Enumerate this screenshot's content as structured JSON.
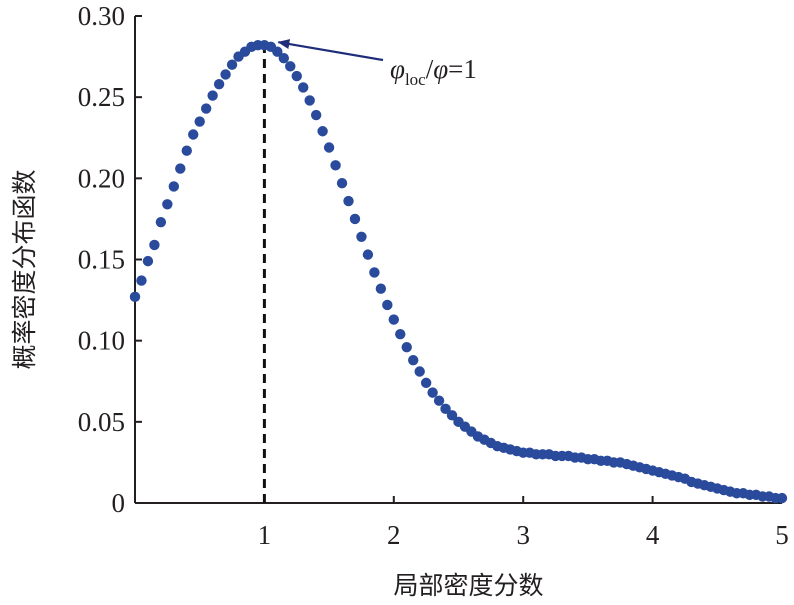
{
  "chart_data": {
    "type": "scatter",
    "title": "",
    "xlabel": "局部密度分数",
    "ylabel": "概率密度分布函数",
    "xlim": [
      0,
      5
    ],
    "ylim": [
      0,
      0.3
    ],
    "x_ticks": [
      {
        "value": 1,
        "label": "1"
      },
      {
        "value": 2,
        "label": "2"
      },
      {
        "value": 3,
        "label": "3"
      },
      {
        "value": 4,
        "label": "4"
      },
      {
        "value": 5,
        "label": "5"
      }
    ],
    "y_ticks": [
      {
        "value": 0,
        "label": "0"
      },
      {
        "value": 0.05,
        "label": "0.05"
      },
      {
        "value": 0.1,
        "label": "0.10"
      },
      {
        "value": 0.15,
        "label": "0.15"
      },
      {
        "value": 0.2,
        "label": "0.20"
      },
      {
        "value": 0.25,
        "label": "0.25"
      },
      {
        "value": 0.3,
        "label": "0.30"
      }
    ],
    "grid": false,
    "marker_color": "#2a4a9c",
    "series": [
      {
        "x": [
          0.0,
          0.05,
          0.1,
          0.15,
          0.2,
          0.25,
          0.3,
          0.35,
          0.4,
          0.45,
          0.5,
          0.55,
          0.6,
          0.65,
          0.7,
          0.75,
          0.8,
          0.85,
          0.9,
          0.95,
          1.0,
          1.05,
          1.1,
          1.15,
          1.2,
          1.25,
          1.3,
          1.35,
          1.4,
          1.45,
          1.5,
          1.55,
          1.6,
          1.65,
          1.7,
          1.75,
          1.8,
          1.85,
          1.9,
          1.95,
          2.0,
          2.05,
          2.1,
          2.15,
          2.2,
          2.25,
          2.3,
          2.35,
          2.4,
          2.45,
          2.5,
          2.55,
          2.6,
          2.65,
          2.7,
          2.75,
          2.8,
          2.85,
          2.9,
          2.95,
          3.0,
          3.05,
          3.1,
          3.15,
          3.2,
          3.25,
          3.3,
          3.35,
          3.4,
          3.45,
          3.5,
          3.55,
          3.6,
          3.65,
          3.7,
          3.75,
          3.8,
          3.85,
          3.9,
          3.95,
          4.0,
          4.05,
          4.1,
          4.15,
          4.2,
          4.25,
          4.3,
          4.35,
          4.4,
          4.45,
          4.5,
          4.55,
          4.6,
          4.65,
          4.7,
          4.75,
          4.8,
          4.85,
          4.9,
          4.95,
          5.0
        ],
        "y": [
          0.127,
          0.137,
          0.149,
          0.159,
          0.173,
          0.184,
          0.195,
          0.206,
          0.217,
          0.227,
          0.235,
          0.243,
          0.251,
          0.258,
          0.264,
          0.27,
          0.275,
          0.278,
          0.281,
          0.282,
          0.282,
          0.281,
          0.278,
          0.274,
          0.269,
          0.263,
          0.256,
          0.248,
          0.239,
          0.229,
          0.219,
          0.208,
          0.197,
          0.186,
          0.175,
          0.164,
          0.153,
          0.142,
          0.132,
          0.122,
          0.113,
          0.104,
          0.096,
          0.088,
          0.081,
          0.074,
          0.068,
          0.063,
          0.058,
          0.054,
          0.05,
          0.047,
          0.044,
          0.041,
          0.039,
          0.037,
          0.035,
          0.034,
          0.033,
          0.032,
          0.031,
          0.031,
          0.03,
          0.03,
          0.03,
          0.029,
          0.029,
          0.029,
          0.028,
          0.028,
          0.027,
          0.027,
          0.026,
          0.026,
          0.025,
          0.025,
          0.024,
          0.023,
          0.022,
          0.021,
          0.02,
          0.019,
          0.018,
          0.017,
          0.016,
          0.015,
          0.013,
          0.012,
          0.011,
          0.01,
          0.009,
          0.008,
          0.007,
          0.006,
          0.006,
          0.005,
          0.005,
          0.004,
          0.004,
          0.003,
          0.003
        ]
      }
    ],
    "annotations": [
      {
        "type": "vline",
        "x": 1,
        "style": "dashed"
      },
      {
        "type": "arrow",
        "target": [
          1.0,
          0.282
        ],
        "text_parts": [
          {
            "text": "φ",
            "style": "italic"
          },
          {
            "text": "loc",
            "style": "sub"
          },
          {
            "text": "/",
            "style": "normal"
          },
          {
            "text": "φ",
            "style": "italic"
          },
          {
            "text": "=1",
            "style": "normal"
          }
        ]
      }
    ]
  }
}
